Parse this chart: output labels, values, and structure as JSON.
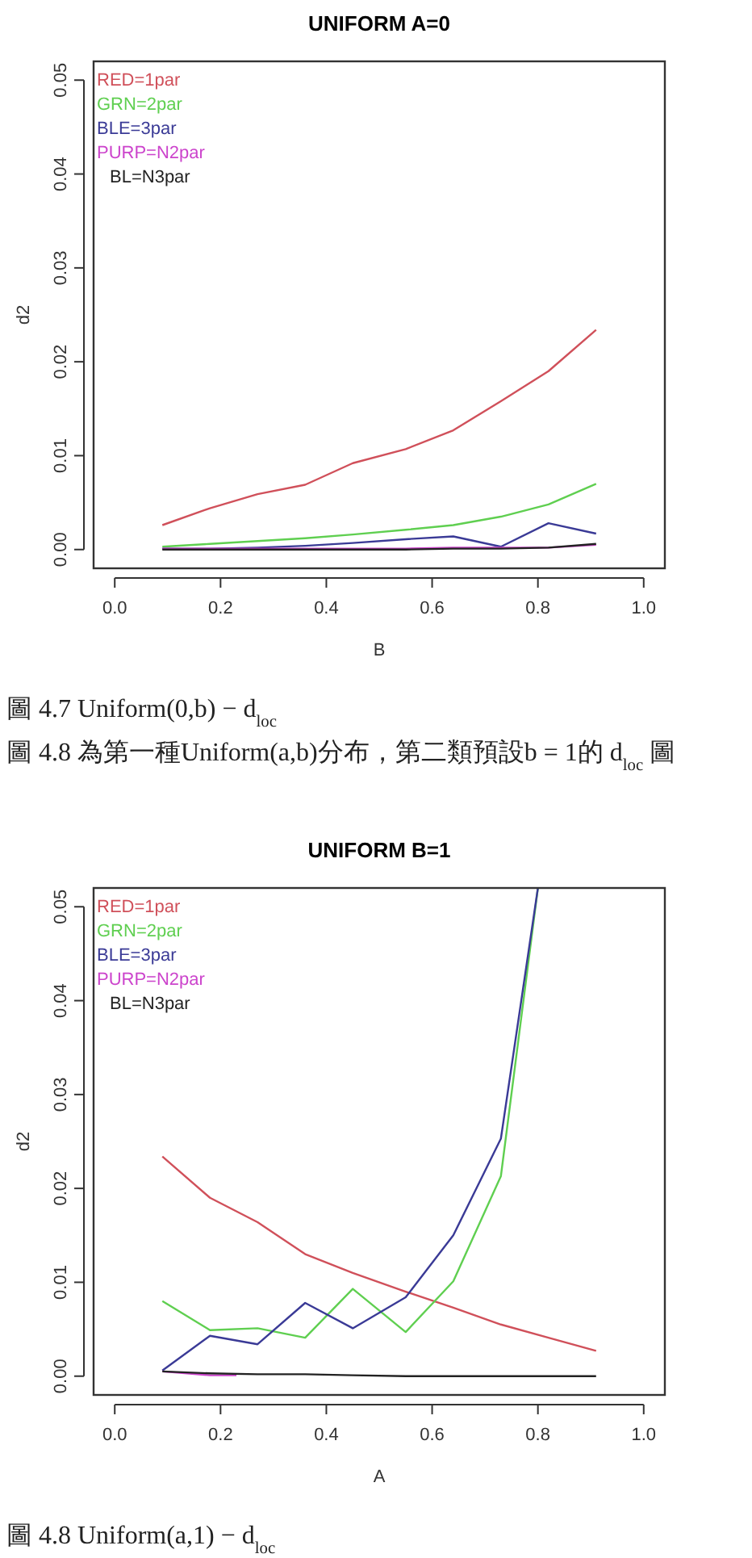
{
  "chart_data": [
    {
      "type": "line",
      "title": "UNIFORM A=0",
      "xlabel": "B",
      "ylabel": "d2",
      "legend": "top left",
      "xlim": [
        -0.04,
        1.04
      ],
      "ylim": [
        -0.002,
        0.052
      ],
      "xticks": [
        {
          "value": 0,
          "label": "0.0"
        },
        {
          "value": 0.2,
          "label": "0.2"
        },
        {
          "value": 0.4,
          "label": "0.4"
        },
        {
          "value": 0.6,
          "label": "0.6"
        },
        {
          "value": 0.8,
          "label": "0.8"
        },
        {
          "value": 1,
          "label": "1.0"
        }
      ],
      "yticks": [
        {
          "value": 0,
          "label": "0.00"
        },
        {
          "value": 0.01,
          "label": "0.01"
        },
        {
          "value": 0.02,
          "label": "0.02"
        },
        {
          "value": 0.03,
          "label": "0.03"
        },
        {
          "value": 0.04,
          "label": "0.04"
        },
        {
          "value": 0.05,
          "label": "0.05"
        }
      ],
      "x": [
        0.09,
        0.18,
        0.27,
        0.36,
        0.45,
        0.55,
        0.64,
        0.73,
        0.82,
        0.91
      ],
      "series": [
        {
          "name": "RED=1par",
          "color": "#d0505a",
          "values": [
            0.0026,
            0.0044,
            0.0059,
            0.0069,
            0.0092,
            0.0107,
            0.0127,
            0.0158,
            0.019,
            0.0234
          ]
        },
        {
          "name": "GRN=2par",
          "color": "#5fcf50",
          "values": [
            0.0003,
            0.0006,
            0.0009,
            0.0012,
            0.0016,
            0.0021,
            0.0026,
            0.0035,
            0.0048,
            0.007
          ]
        },
        {
          "name": "BLE=3par",
          "color": "#3a3a96",
          "values": [
            0.0001,
            0.0001,
            0.0002,
            0.0004,
            0.0007,
            0.0011,
            0.0014,
            0.0003,
            0.0028,
            0.0017
          ]
        },
        {
          "name": "PURP=N2par",
          "color": "#cc44cc",
          "values": [
            0.0001,
            0.0001,
            0.0001,
            0.0001,
            0.0001,
            0.0001,
            0.0002,
            0.0002,
            0.0002,
            0.0005
          ]
        },
        {
          "name": "BL=N3par",
          "color": "#222222",
          "values": [
            0,
            0,
            0,
            0,
            0,
            0,
            0.0001,
            0.0001,
            0.0002,
            0.0006
          ]
        }
      ],
      "annotations": [
        "圖 4.7  Uniform(0,b) − d$_{loc}$",
        "圖 4.8 為第一種Uniform(a,b)分布，第二類預設b = 1的 d$_{loc}$ 圖"
      ]
    },
    {
      "type": "line",
      "title": "UNIFORM B=1",
      "xlabel": "A",
      "ylabel": "d2",
      "legend": "top left",
      "xlim": [
        -0.04,
        1.04
      ],
      "ylim": [
        -0.002,
        0.052
      ],
      "xticks": [
        {
          "value": 0,
          "label": "0.0"
        },
        {
          "value": 0.2,
          "label": "0.2"
        },
        {
          "value": 0.4,
          "label": "0.4"
        },
        {
          "value": 0.6,
          "label": "0.6"
        },
        {
          "value": 0.8,
          "label": "0.8"
        },
        {
          "value": 1,
          "label": "1.0"
        }
      ],
      "yticks": [
        {
          "value": 0,
          "label": "0.00"
        },
        {
          "value": 0.01,
          "label": "0.01"
        },
        {
          "value": 0.02,
          "label": "0.02"
        },
        {
          "value": 0.03,
          "label": "0.03"
        },
        {
          "value": 0.04,
          "label": "0.04"
        },
        {
          "value": 0.05,
          "label": "0.05"
        }
      ],
      "x": [
        0.09,
        0.18,
        0.27,
        0.36,
        0.45,
        0.55,
        0.64,
        0.73,
        0.82,
        0.91
      ],
      "series": [
        {
          "name": "RED=1par",
          "color": "#d0505a",
          "values": [
            0.0234,
            0.019,
            0.0164,
            0.013,
            0.011,
            0.009,
            0.0073,
            0.0055,
            0.0041,
            0.0027
          ]
        },
        {
          "name": "GRN=2par",
          "color": "#5fcf50",
          "x": [
            0.09,
            0.18,
            0.27,
            0.36,
            0.45,
            0.55,
            0.64,
            0.73,
            0.8
          ],
          "values": [
            0.008,
            0.0049,
            0.0051,
            0.0041,
            0.0093,
            0.0047,
            0.0101,
            0.0213,
            0.052
          ]
        },
        {
          "name": "BLE=3par",
          "color": "#3a3a96",
          "x": [
            0.09,
            0.18,
            0.27,
            0.36,
            0.45,
            0.55,
            0.64,
            0.73,
            0.8
          ],
          "values": [
            0.0006,
            0.0043,
            0.0034,
            0.0078,
            0.0051,
            0.0084,
            0.015,
            0.0253,
            0.052
          ]
        },
        {
          "name": "PURP=N2par",
          "color": "#cc44cc",
          "x": [
            0.09,
            0.18,
            0.23
          ],
          "values": [
            0.0005,
            0.0001,
            0.0001
          ]
        },
        {
          "name": "BL=N3par",
          "color": "#222222",
          "values": [
            0.0005,
            0.0003,
            0.0002,
            0.0002,
            0.0001,
            0,
            0,
            0,
            0,
            0
          ]
        }
      ],
      "annotations": [
        "圖 4.8  Uniform(a,1) − d$_{loc}$"
      ]
    }
  ]
}
